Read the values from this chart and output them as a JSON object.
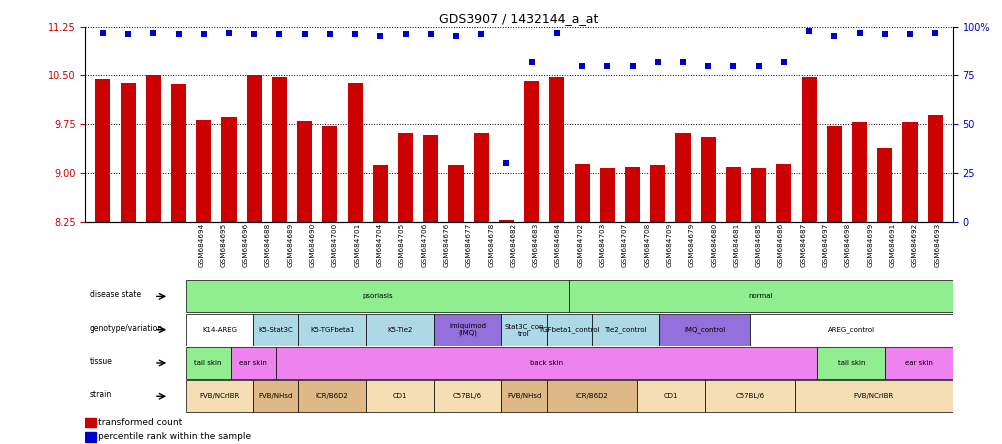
{
  "title": "GDS3907 / 1432144_a_at",
  "sample_ids": [
    "GSM684694",
    "GSM684695",
    "GSM684696",
    "GSM684688",
    "GSM684689",
    "GSM684690",
    "GSM684700",
    "GSM684701",
    "GSM684704",
    "GSM684705",
    "GSM684706",
    "GSM684676",
    "GSM684677",
    "GSM684678",
    "GSM684682",
    "GSM684683",
    "GSM684684",
    "GSM684702",
    "GSM684703",
    "GSM684707",
    "GSM684708",
    "GSM684709",
    "GSM684679",
    "GSM684680",
    "GSM684681",
    "GSM684685",
    "GSM684686",
    "GSM684687",
    "GSM684697",
    "GSM684698",
    "GSM684699",
    "GSM684691",
    "GSM684692",
    "GSM684693"
  ],
  "bar_values": [
    10.45,
    10.38,
    10.5,
    10.37,
    9.82,
    9.87,
    10.5,
    10.48,
    9.8,
    9.72,
    10.38,
    9.12,
    9.62,
    9.58,
    9.12,
    9.62,
    8.28,
    10.42,
    10.48,
    9.14,
    9.08,
    9.1,
    9.13,
    9.62,
    9.55,
    9.09,
    9.08,
    9.14,
    10.48,
    9.72,
    9.78,
    9.38,
    9.79,
    9.89
  ],
  "percentile_values": [
    97,
    96,
    97,
    96,
    96,
    97,
    96,
    96,
    96,
    96,
    96,
    95,
    96,
    96,
    95,
    96,
    30,
    82,
    97,
    80,
    80,
    80,
    82,
    82,
    80,
    80,
    80,
    82,
    98,
    95,
    97,
    96,
    96,
    97
  ],
  "ylim_left": [
    8.25,
    11.25
  ],
  "yticks_left": [
    8.25,
    9.0,
    9.75,
    10.5,
    11.25
  ],
  "ylim_right": [
    0,
    100
  ],
  "yticks_right": [
    0,
    25,
    50,
    75,
    100
  ],
  "bar_color": "#cc0000",
  "dot_color": "#0000cc",
  "annotation_rows": [
    {
      "label": "disease state",
      "segments": [
        {
          "text": "psoriasis",
          "start": 0,
          "end": 17,
          "color": "#90ee90"
        },
        {
          "text": "normal",
          "start": 17,
          "end": 34,
          "color": "#90ee90"
        }
      ]
    },
    {
      "label": "genotype/variation",
      "segments": [
        {
          "text": "K14-AREG",
          "start": 0,
          "end": 3,
          "color": "#ffffff"
        },
        {
          "text": "K5-Stat3C",
          "start": 3,
          "end": 5,
          "color": "#add8e6"
        },
        {
          "text": "K5-TGFbeta1",
          "start": 5,
          "end": 8,
          "color": "#add8e6"
        },
        {
          "text": "K5-Tie2",
          "start": 8,
          "end": 11,
          "color": "#add8e6"
        },
        {
          "text": "imiquimod\n(IMQ)",
          "start": 11,
          "end": 14,
          "color": "#9370db"
        },
        {
          "text": "Stat3C_con\ntrol",
          "start": 14,
          "end": 16,
          "color": "#add8e6"
        },
        {
          "text": "TGFbeta1_control",
          "start": 16,
          "end": 18,
          "color": "#add8e6"
        },
        {
          "text": "Tie2_control",
          "start": 18,
          "end": 21,
          "color": "#add8e6"
        },
        {
          "text": "IMQ_control",
          "start": 21,
          "end": 25,
          "color": "#9370db"
        },
        {
          "text": "AREG_control",
          "start": 25,
          "end": 34,
          "color": "#ffffff"
        }
      ]
    },
    {
      "label": "tissue",
      "segments": [
        {
          "text": "tail skin",
          "start": 0,
          "end": 2,
          "color": "#90ee90"
        },
        {
          "text": "ear skin",
          "start": 2,
          "end": 4,
          "color": "#ee82ee"
        },
        {
          "text": "back skin",
          "start": 4,
          "end": 28,
          "color": "#ee82ee"
        },
        {
          "text": "tail skin",
          "start": 28,
          "end": 31,
          "color": "#90ee90"
        },
        {
          "text": "ear skin",
          "start": 31,
          "end": 34,
          "color": "#ee82ee"
        }
      ]
    },
    {
      "label": "strain",
      "segments": [
        {
          "text": "FVB/NCrIBR",
          "start": 0,
          "end": 3,
          "color": "#f5deb3"
        },
        {
          "text": "FVB/NHsd",
          "start": 3,
          "end": 5,
          "color": "#deb887"
        },
        {
          "text": "ICR/B6D2",
          "start": 5,
          "end": 8,
          "color": "#deb887"
        },
        {
          "text": "CD1",
          "start": 8,
          "end": 11,
          "color": "#f5deb3"
        },
        {
          "text": "C57BL/6",
          "start": 11,
          "end": 14,
          "color": "#f5deb3"
        },
        {
          "text": "FVB/NHsd",
          "start": 14,
          "end": 16,
          "color": "#deb887"
        },
        {
          "text": "ICR/B6D2",
          "start": 16,
          "end": 20,
          "color": "#deb887"
        },
        {
          "text": "CD1",
          "start": 20,
          "end": 23,
          "color": "#f5deb3"
        },
        {
          "text": "C57BL/6",
          "start": 23,
          "end": 27,
          "color": "#f5deb3"
        },
        {
          "text": "FVB/NCrIBR",
          "start": 27,
          "end": 34,
          "color": "#f5deb3"
        }
      ]
    }
  ],
  "legend_items": [
    {
      "color": "#cc0000",
      "label": "transformed count"
    },
    {
      "color": "#0000cc",
      "label": "percentile rank within the sample"
    }
  ]
}
